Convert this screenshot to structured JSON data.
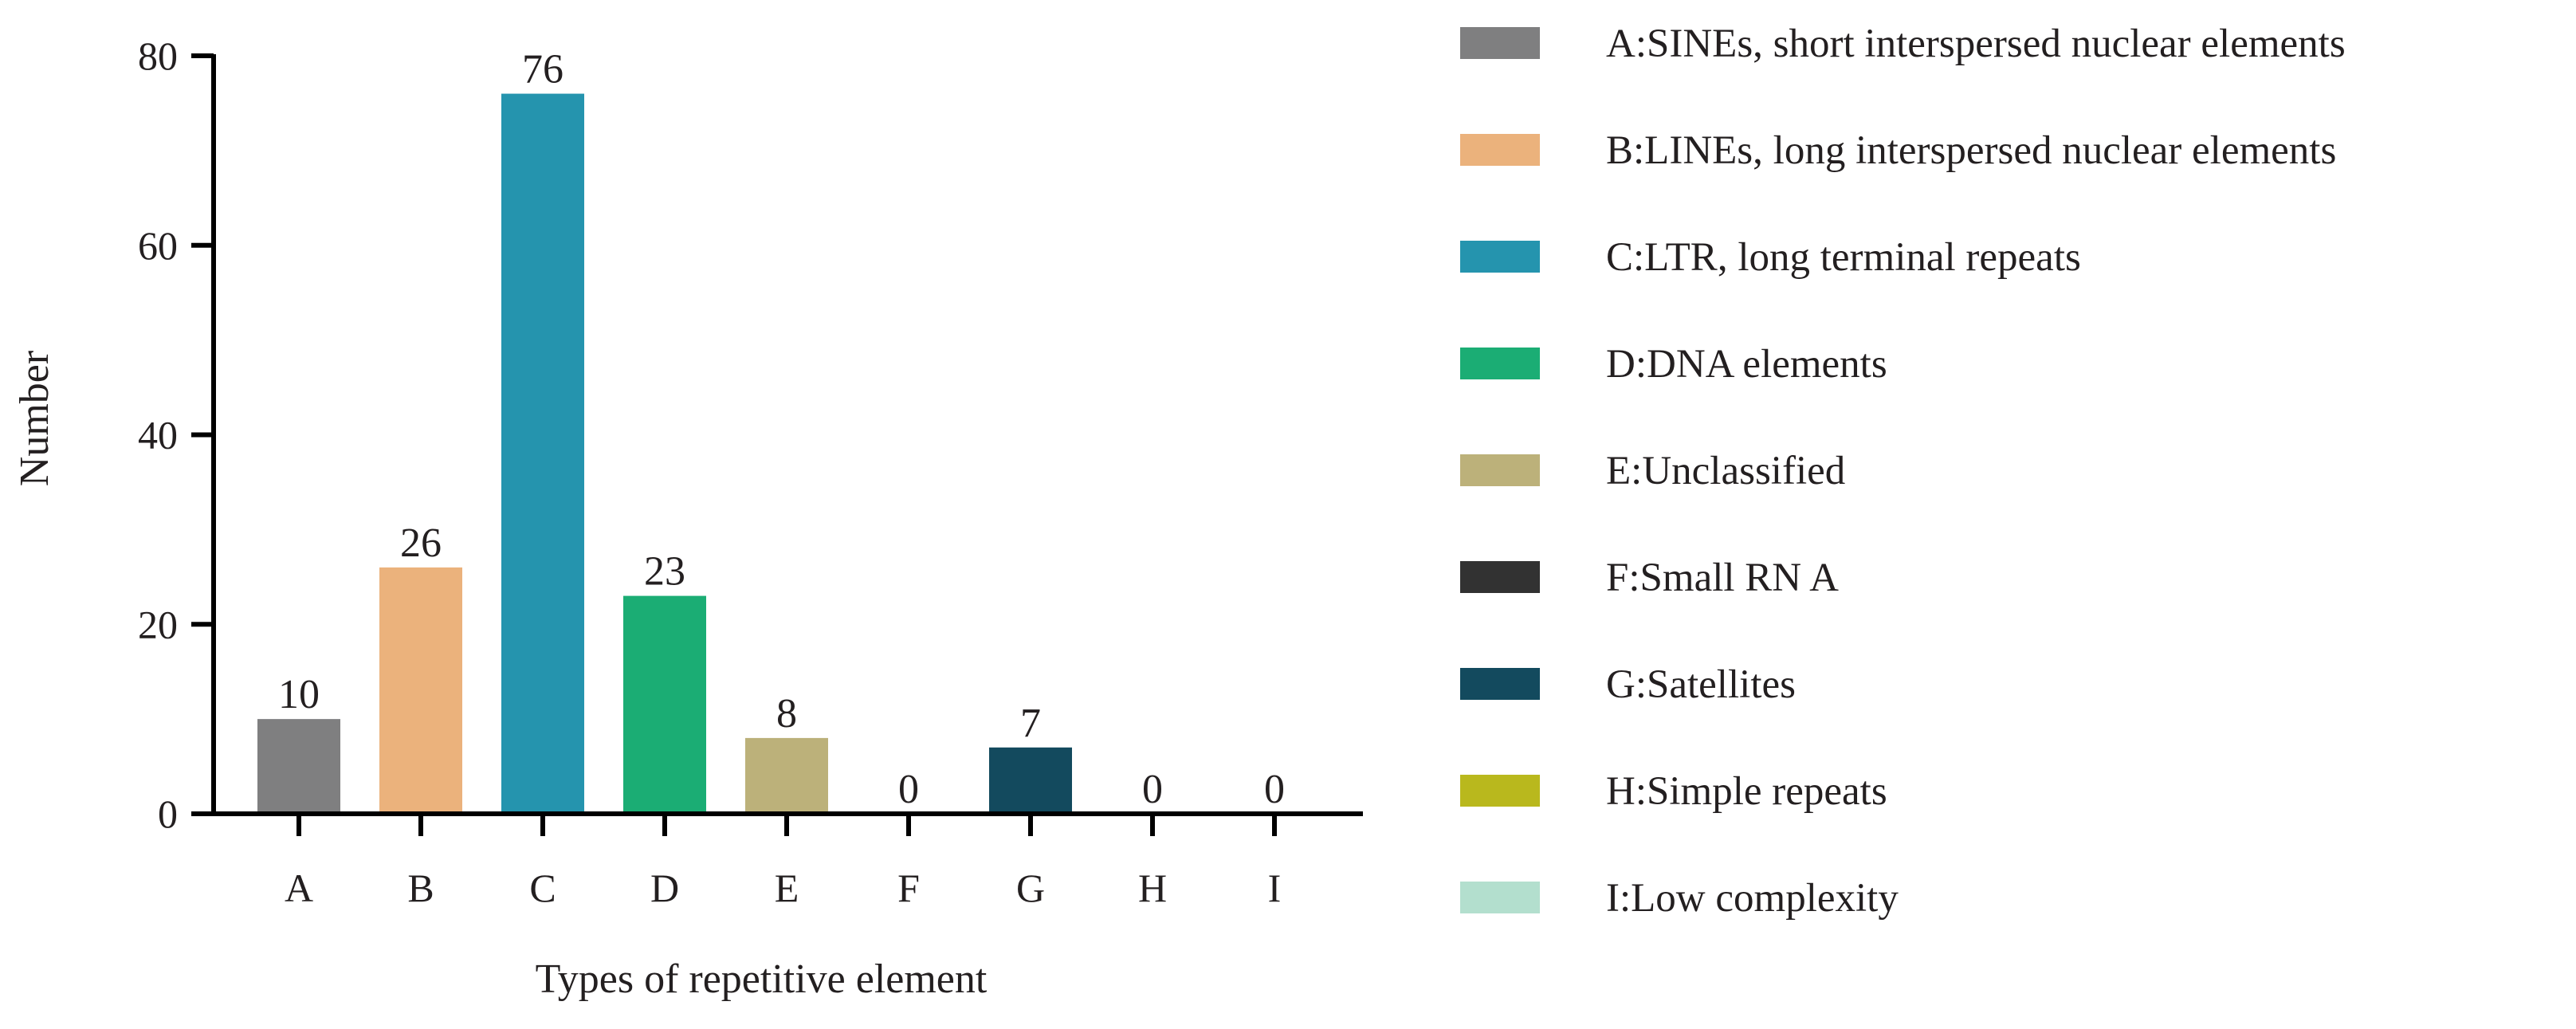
{
  "chart_data": {
    "type": "bar",
    "title": "",
    "xlabel": "Types of repetitive element",
    "ylabel": "Number",
    "ylim": [
      0,
      80
    ],
    "yticks": [
      0,
      20,
      40,
      60,
      80
    ],
    "grid": false,
    "legend_position": "right",
    "categories": [
      "A",
      "B",
      "C",
      "D",
      "E",
      "F",
      "G",
      "H",
      "I"
    ],
    "values": [
      10,
      26,
      76,
      23,
      8,
      0,
      7,
      0,
      0
    ],
    "colors": [
      "#7f7f80",
      "#ebb27c",
      "#2594ae",
      "#1bad74",
      "#bcb17a",
      "#323232",
      "#134a5e",
      "#b9b81d",
      "#b3dfce"
    ],
    "legend": [
      "A:SINEs, short interspersed nuclear elements",
      "B:LINEs, long interspersed nuclear elements",
      "C:LTR, long terminal repeats",
      "D:DNA elements",
      "E:Unclassified",
      "F:Small RN A",
      "G:Satellites",
      "H:Simple repeats",
      "I:Low complexity"
    ]
  }
}
